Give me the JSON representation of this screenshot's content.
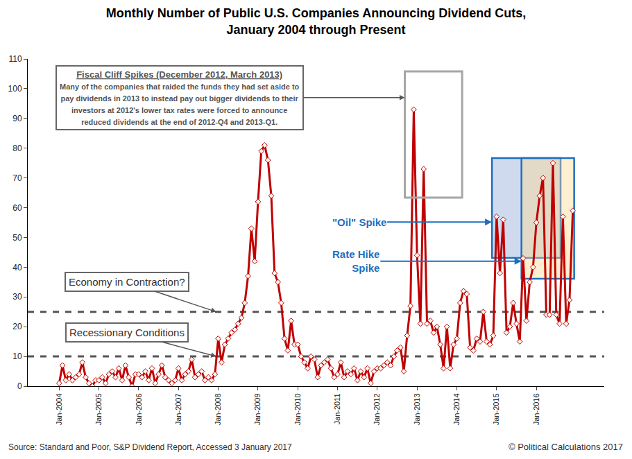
{
  "chart_data": {
    "type": "line",
    "title": "Monthly Number of Public U.S. Companies Announcing Dividend Cuts, January 2004 through Present",
    "categories": [
      "Jan-2004",
      null,
      null,
      null,
      null,
      null,
      null,
      null,
      null,
      null,
      null,
      null,
      "Jan-2005",
      null,
      null,
      null,
      null,
      null,
      null,
      null,
      null,
      null,
      null,
      null,
      "Jan-2006",
      null,
      null,
      null,
      null,
      null,
      null,
      null,
      null,
      null,
      null,
      null,
      "Jan-2007",
      null,
      null,
      null,
      null,
      null,
      null,
      null,
      null,
      null,
      null,
      null,
      "Jan-2008",
      null,
      null,
      null,
      null,
      null,
      null,
      null,
      null,
      null,
      null,
      null,
      "Jan-2009",
      null,
      null,
      null,
      null,
      null,
      null,
      null,
      null,
      null,
      null,
      null,
      "Jan-2010",
      null,
      null,
      null,
      null,
      null,
      null,
      null,
      null,
      null,
      null,
      null,
      "Jan-2011",
      null,
      null,
      null,
      null,
      null,
      null,
      null,
      null,
      null,
      null,
      null,
      "Jan-2012",
      null,
      null,
      null,
      null,
      null,
      null,
      null,
      null,
      null,
      null,
      null,
      "Jan-2013",
      null,
      null,
      null,
      null,
      null,
      null,
      null,
      null,
      null,
      null,
      null,
      "Jan-2014",
      null,
      null,
      null,
      null,
      null,
      null,
      null,
      null,
      null,
      null,
      null,
      "Jan-2015",
      null,
      null,
      null,
      null,
      null,
      null,
      null,
      null,
      null,
      null,
      null,
      "Jan-2016",
      null,
      null,
      null,
      null,
      null,
      null,
      null,
      null,
      null,
      null,
      null
    ],
    "values": [
      1,
      7,
      2,
      4,
      2,
      3,
      4,
      8,
      3,
      1,
      0,
      2,
      2,
      3,
      1,
      4,
      5,
      3,
      6,
      2,
      7,
      3,
      0,
      4,
      4,
      3,
      5,
      2,
      6,
      1,
      4,
      7,
      3,
      2,
      1,
      2,
      6,
      2,
      4,
      5,
      9,
      3,
      4,
      5,
      2,
      3,
      2,
      4,
      16,
      8,
      14,
      16,
      18,
      19,
      21,
      23,
      28,
      37,
      53,
      42,
      62,
      79,
      81,
      76,
      64,
      38,
      35,
      28,
      16,
      12,
      22,
      14,
      14,
      10,
      8,
      6,
      10,
      9,
      3,
      7,
      8,
      9,
      6,
      3,
      4,
      8,
      3,
      5,
      4,
      6,
      2,
      5,
      3,
      6,
      1,
      5,
      6,
      6,
      7,
      8,
      7,
      10,
      12,
      13,
      5,
      17,
      27,
      93,
      44,
      21,
      73,
      21,
      22,
      18,
      20,
      14,
      6,
      20,
      6,
      14,
      16,
      28,
      32,
      31,
      13,
      12,
      16,
      15,
      25,
      15,
      14,
      17,
      57,
      38,
      56,
      18,
      20,
      28,
      21,
      15,
      43,
      22,
      35,
      40,
      55,
      64,
      70,
      24,
      24,
      75,
      24,
      21,
      57,
      21,
      29,
      59
    ],
    "color": "#c00000",
    "marker": "diamond",
    "line_style": "solid",
    "ylim": [
      0,
      110
    ],
    "yticks": [
      0,
      10,
      20,
      30,
      40,
      50,
      60,
      70,
      80,
      90,
      100,
      110
    ],
    "grid": false,
    "reference_lines": [
      {
        "value": 25,
        "label": "Economy in Contraction?"
      },
      {
        "value": 10,
        "label": "Recessionary Conditions"
      }
    ],
    "notes": {
      "fiscal_cliff": {
        "title": "Fiscal Cliff Spikes (December 2012, March 2013)",
        "lines": [
          "Many of the companies that raided the funds they had set aside to",
          "pay dividends in 2013 to instead pay out bigger dividends to their",
          "investors at 2012's lower tax rates were forced to announce",
          "reduced dividends at the end of 2012-Q4 and 2013-Q1."
        ]
      },
      "oil_spike": "\"Oil\" Spike",
      "rate_hike_spike": [
        "Rate Hike",
        "Spike"
      ]
    },
    "source": "Source: Standard and Poor, S&P Dividend Report, Accessed 3 January 2017",
    "credit": "© Political Calculations 2017"
  }
}
